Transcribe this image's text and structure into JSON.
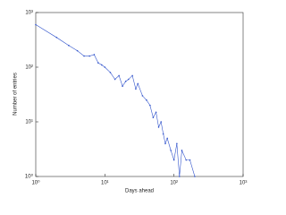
{
  "chart_data": {
    "type": "line",
    "xlabel": "Days ahead",
    "ylabel": "Number of entries",
    "log_x": true,
    "log_y": true,
    "xlim": [
      1,
      1000
    ],
    "ylim": [
      1,
      1000
    ],
    "xticks": [
      {
        "value": 1,
        "label": "10⁰"
      },
      {
        "value": 10,
        "label": "10¹"
      },
      {
        "value": 100,
        "label": "10²"
      },
      {
        "value": 1000,
        "label": "10³"
      }
    ],
    "yticks": [
      {
        "value": 1,
        "label": "10⁰"
      },
      {
        "value": 10,
        "label": "10¹"
      },
      {
        "value": 100,
        "label": "10²"
      },
      {
        "value": 1000,
        "label": "10³"
      }
    ],
    "series": [
      {
        "name": "entries",
        "color": "#3355cc",
        "x": [
          1,
          2,
          3,
          4,
          5,
          6,
          7,
          8,
          9,
          10,
          12,
          14,
          16,
          18,
          20,
          22,
          25,
          28,
          30,
          35,
          40,
          45,
          50,
          55,
          60,
          65,
          70,
          75,
          80,
          90,
          100,
          110,
          120,
          130,
          150,
          170,
          200
        ],
        "values": [
          600,
          350,
          250,
          200,
          160,
          160,
          170,
          120,
          110,
          100,
          80,
          60,
          70,
          45,
          55,
          60,
          70,
          40,
          50,
          30,
          25,
          20,
          12,
          15,
          8,
          10,
          6,
          4,
          5,
          3,
          2,
          4,
          1,
          3,
          2,
          2,
          1
        ]
      }
    ]
  }
}
